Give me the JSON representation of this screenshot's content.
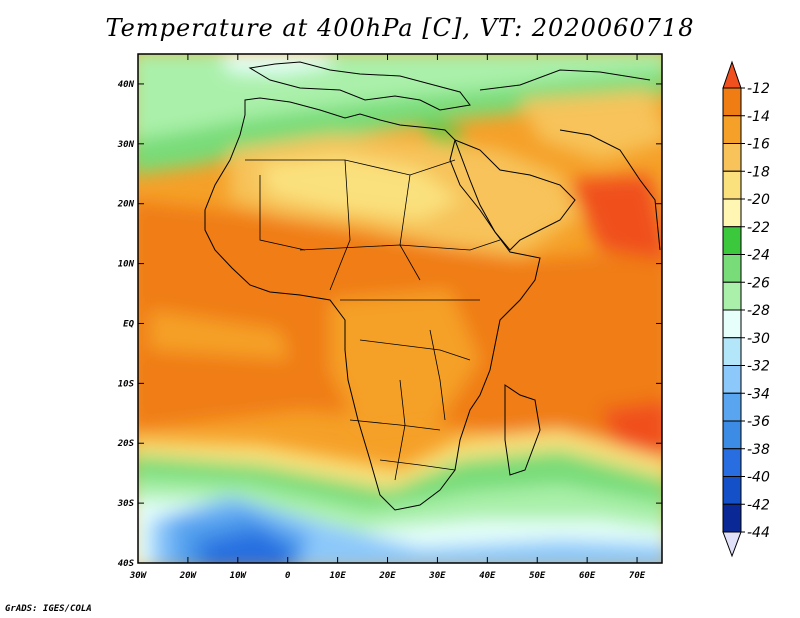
{
  "title": "Temperature at 400hPa [C], VT: 2020060718",
  "credit": "GrADS: IGES/COLA",
  "map": {
    "lon_range": [
      -30,
      75
    ],
    "lat_range": [
      -40,
      45
    ],
    "lon_ticks": [
      "30W",
      "20W",
      "10W",
      "0",
      "10E",
      "20E",
      "30E",
      "40E",
      "50E",
      "60E",
      "70E"
    ],
    "lon_tick_values": [
      -30,
      -20,
      -10,
      0,
      10,
      20,
      30,
      40,
      50,
      60,
      70
    ],
    "lat_ticks": [
      "40S",
      "30S",
      "20S",
      "10S",
      "EQ",
      "10N",
      "20N",
      "30N",
      "40N"
    ],
    "lat_tick_values": [
      -40,
      -30,
      -20,
      -10,
      0,
      10,
      20,
      30,
      40
    ]
  },
  "colorbar": {
    "labels": [
      "-12",
      "-14",
      "-16",
      "-18",
      "-20",
      "-22",
      "-24",
      "-26",
      "-28",
      "-30",
      "-32",
      "-34",
      "-36",
      "-38",
      "-40",
      "-42",
      "-44"
    ],
    "colors": [
      "#f0501e",
      "#f07d14",
      "#f5a028",
      "#f7c35a",
      "#fae17d",
      "#fff6b4",
      "#3cc83c",
      "#78dc78",
      "#aaf0aa",
      "#e6fffa",
      "#b4e6fa",
      "#8cc8fa",
      "#5aa5f0",
      "#3c8ce6",
      "#286ee1",
      "#1450c8",
      "#0a2896",
      "#000080",
      "#e1e1fa"
    ]
  }
}
